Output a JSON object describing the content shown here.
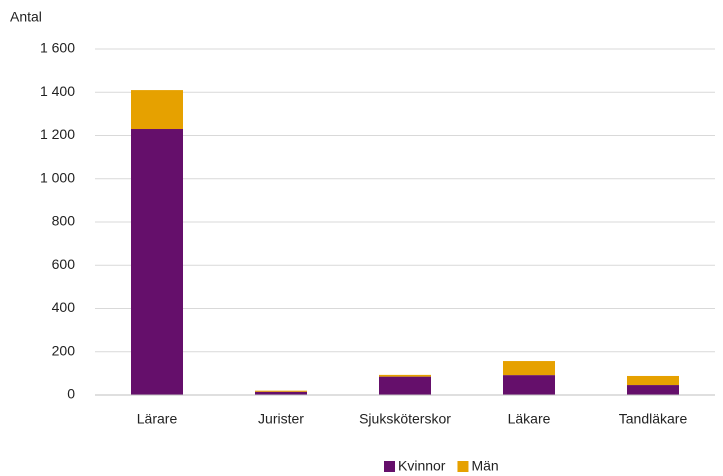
{
  "chart_data": {
    "type": "stacked_bar",
    "y_label": "Antal",
    "categories": [
      "Lärare",
      "Jurister",
      "Sjuksköterskor",
      "Läkare",
      "Tandläkare"
    ],
    "series": [
      {
        "name": "Kvinnor",
        "color": "#650f6b",
        "values": [
          1230,
          15,
          85,
          92,
          46
        ]
      },
      {
        "name": "Män",
        "color": "#e6a100",
        "values": [
          180,
          5,
          8,
          65,
          42
        ]
      }
    ],
    "ylim": [
      0,
      1600
    ],
    "yticks": [
      0,
      200,
      400,
      600,
      800,
      {
        "value": 1000,
        "label": "1 000"
      },
      {
        "value": 1200,
        "label": "1 200"
      },
      {
        "value": 1400,
        "label": "1 400"
      },
      {
        "value": 1600,
        "label": "1 600"
      }
    ],
    "grid": true,
    "legend": "bottom"
  }
}
